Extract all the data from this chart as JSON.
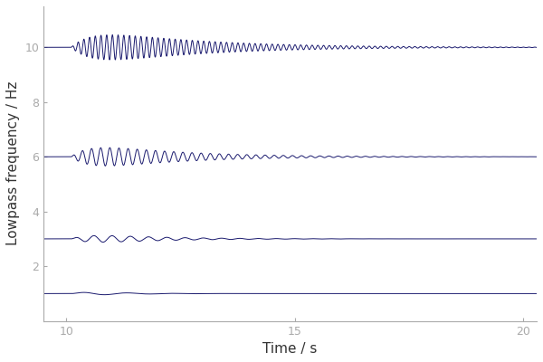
{
  "trace_offsets": [
    1,
    3,
    6,
    10
  ],
  "t_start": 9.5,
  "t_end": 20.3,
  "n_points": 3000,
  "event_time": 10.1,
  "signal_freqs": [
    1.0,
    2.5,
    5.0,
    8.0
  ],
  "amplitudes": [
    0.12,
    0.25,
    0.65,
    0.85
  ],
  "decay_rates": [
    1.2,
    0.7,
    0.55,
    0.45
  ],
  "peak_times": [
    0.8,
    0.9,
    1.0,
    1.1
  ],
  "xlim": [
    9.5,
    20.3
  ],
  "ylim": [
    0.0,
    11.5
  ],
  "xticks": [
    10,
    15,
    20
  ],
  "yticks": [
    2,
    4,
    6,
    8,
    10
  ],
  "xlabel": "Time / s",
  "ylabel": "Lowpass frequency / Hz",
  "line_color": "#1a1a6e",
  "bg_color": "#ffffff",
  "linewidth": 0.7,
  "figsize": [
    6.0,
    4.0
  ],
  "dpi": 100
}
